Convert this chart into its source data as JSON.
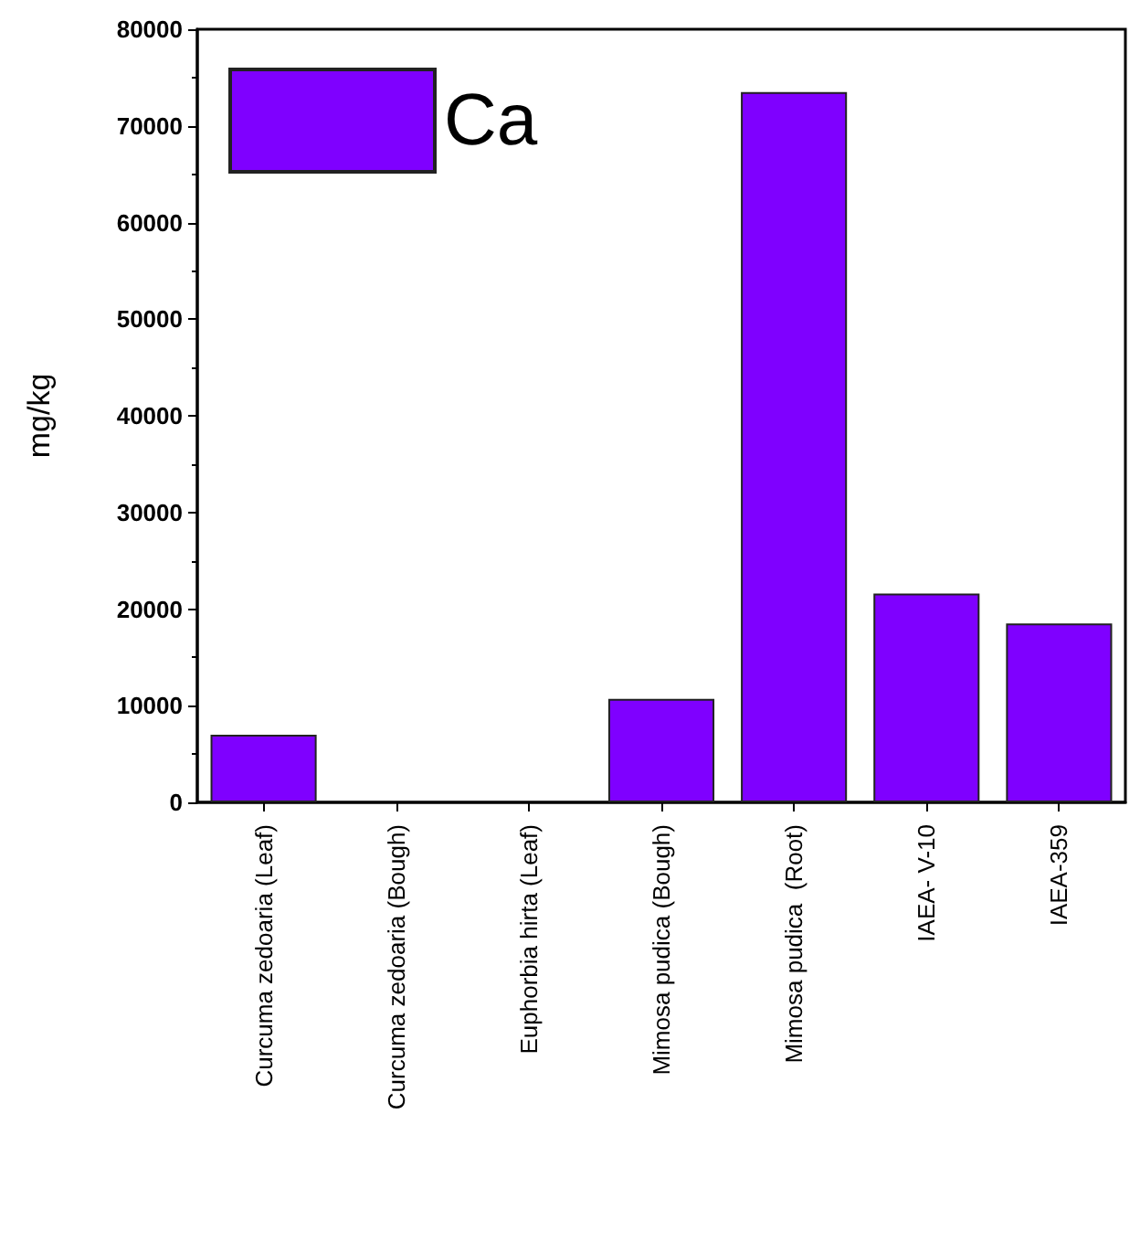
{
  "chart_data": {
    "type": "bar",
    "categories": [
      "Curcuma zedoaria (Leaf)",
      "Curcuma zedoaria (Bough)",
      "Euphorbia hirta (Leaf)",
      "Mimosa pudica (Bough)",
      "Mimosa pudica  (Root)",
      "IAEA- V-10",
      "IAEA-359"
    ],
    "series": [
      {
        "name": "Ca",
        "color": "#7f00ff",
        "values": [
          7000,
          null,
          null,
          10700,
          73500,
          21600,
          18500
        ]
      }
    ],
    "ylabel": "mg/kg",
    "ylim": [
      0,
      80000
    ],
    "yticks": [
      0,
      10000,
      20000,
      30000,
      40000,
      50000,
      60000,
      70000,
      80000
    ],
    "grid": false,
    "legend": "top left"
  }
}
